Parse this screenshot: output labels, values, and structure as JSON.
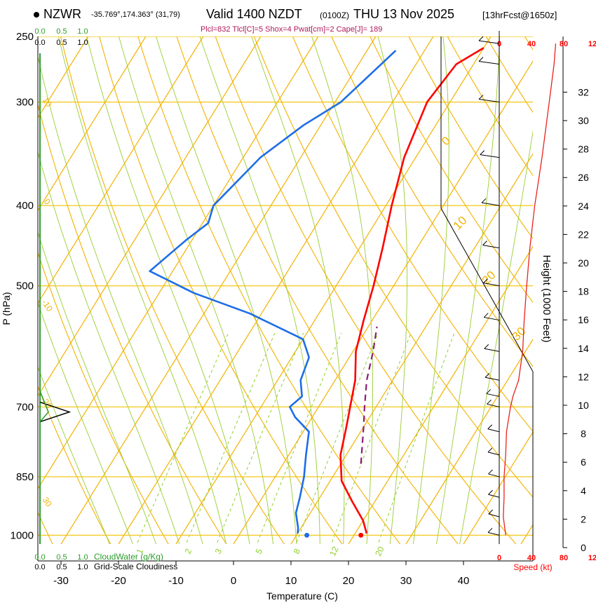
{
  "header": {
    "station": "NZWR",
    "coords": "-35.769°,174.363° (31,79)",
    "valid": "Valid 1400 NZDT",
    "utc": "(0100Z)",
    "date": "THU 13 Nov 2025",
    "forecast": "[13hrFcst@1650z]",
    "indices": "Plcl=832 Tlcl[C]=5 Shox=4 Pwat[cm]=2 Cape[J]= 189"
  },
  "chart_data": {
    "type": "line",
    "title": "Skew-T log-P sounding",
    "xlabel": "Temperature (C)",
    "ylabel": "P (hPa)",
    "right_label": "Height (1000 Feet)",
    "xlim": [
      -35,
      45
    ],
    "pressure_ticks": [
      "250",
      "300",
      "400",
      "500",
      "700",
      "850",
      "1000"
    ],
    "temp_ticks": [
      "-30",
      "-20",
      "-10",
      "0",
      "10",
      "20",
      "30",
      "40"
    ],
    "height_ticks": [
      "0",
      "2",
      "4",
      "6",
      "8",
      "10",
      "12",
      "14",
      "16",
      "18",
      "20",
      "22",
      "24",
      "26",
      "28",
      "30",
      "32"
    ],
    "isotherm_labels": [
      "0",
      "10",
      "20",
      "30"
    ],
    "dry_adiabat_labels": [
      "10",
      "0",
      "-10",
      "20",
      "30"
    ],
    "mixing_ratio_labels": [
      "1",
      "2",
      "3",
      "5",
      "8",
      "12",
      "20"
    ],
    "series": [
      {
        "name": "Temperature",
        "color": "#ff0000",
        "points": [
          [
            22,
            995
          ],
          [
            20,
            960
          ],
          [
            16,
            910
          ],
          [
            12,
            860
          ],
          [
            9,
            800
          ],
          [
            7,
            740
          ],
          [
            5.5,
            700
          ],
          [
            3.5,
            650
          ],
          [
            0.5,
            600
          ],
          [
            -1.5,
            550
          ],
          [
            -3.5,
            500
          ],
          [
            -6,
            450
          ],
          [
            -9,
            400
          ],
          [
            -12,
            350
          ],
          [
            -14,
            300
          ],
          [
            -13,
            270
          ],
          [
            -10,
            258
          ]
        ]
      },
      {
        "name": "Dewpoint",
        "color": "#1e6ee6",
        "points": [
          [
            10,
            995
          ],
          [
            9.5,
            980
          ],
          [
            7.5,
            940
          ],
          [
            6.5,
            900
          ],
          [
            5,
            850
          ],
          [
            3,
            800
          ],
          [
            1,
            750
          ],
          [
            -3,
            720
          ],
          [
            -5,
            700
          ],
          [
            -4,
            680
          ],
          [
            -6,
            650
          ],
          [
            -7,
            610
          ],
          [
            -10,
            580
          ],
          [
            -22,
            540
          ],
          [
            -34,
            510
          ],
          [
            -44,
            480
          ],
          [
            -41,
            440
          ],
          [
            -39,
            420
          ],
          [
            -40,
            400
          ],
          [
            -37,
            350
          ],
          [
            -33,
            320
          ],
          [
            -29,
            300
          ],
          [
            -25,
            260
          ]
        ]
      },
      {
        "name": "Parcel",
        "color": "#8b2070",
        "points": [
          [
            13.5,
            820
          ],
          [
            10,
            740
          ],
          [
            8,
            700
          ],
          [
            5.5,
            650
          ],
          [
            3.5,
            600
          ],
          [
            1.5,
            560
          ]
        ]
      }
    ],
    "surface_markers": [
      {
        "name": "surface-temperature",
        "temp": 21.2,
        "pressure": 1000,
        "color": "#ff0000"
      },
      {
        "name": "surface-dewpoint",
        "temp": 11.8,
        "pressure": 1000,
        "color": "#1e6ee6"
      }
    ],
    "cloud": {
      "legend_cloudwater": "CloudWater (g/Kg)",
      "legend_cloudiness": "Grid-Scale Cloudiness",
      "scale_cloudwater": [
        "0.0",
        "0.5",
        "1.0"
      ],
      "scale_cloudiness": [
        "0.0",
        "0.5",
        "1.0"
      ],
      "cloudiness_spike": {
        "pressure": 710,
        "value": 0.7
      }
    },
    "wind": {
      "axis_label": "Speed (kt)",
      "scale": [
        "0",
        "40",
        "80",
        "12"
      ],
      "speed_profile": [
        [
          1000,
          8
        ],
        [
          950,
          5
        ],
        [
          900,
          6
        ],
        [
          850,
          6
        ],
        [
          800,
          8
        ],
        [
          750,
          9
        ],
        [
          700,
          14
        ],
        [
          680,
          17
        ],
        [
          650,
          24
        ],
        [
          600,
          29
        ],
        [
          550,
          31
        ],
        [
          500,
          34
        ],
        [
          450,
          38
        ],
        [
          400,
          44
        ],
        [
          350,
          53
        ],
        [
          300,
          62
        ],
        [
          270,
          68
        ],
        [
          255,
          70
        ]
      ]
    }
  }
}
